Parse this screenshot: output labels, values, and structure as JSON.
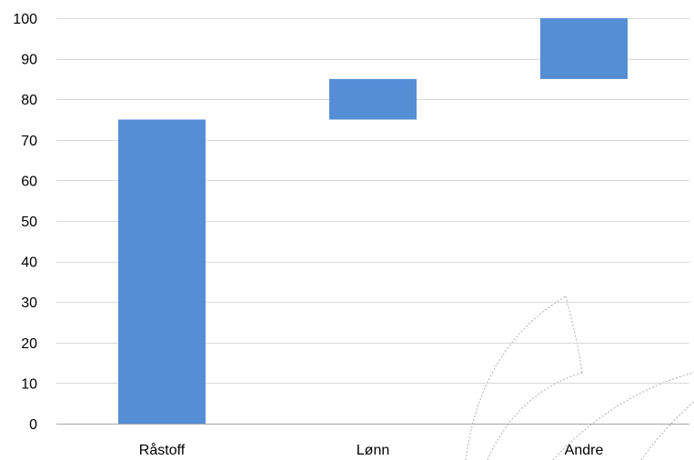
{
  "chart_data": {
    "type": "bar",
    "subtype": "waterfall",
    "title": "",
    "xlabel": "",
    "ylabel": "",
    "categories": [
      "Råstoff",
      "Lønn",
      "Andre"
    ],
    "values": [
      75,
      10,
      15
    ],
    "ranges": [
      [
        0,
        75
      ],
      [
        75,
        85
      ],
      [
        85,
        100
      ]
    ],
    "ylim": [
      0,
      100
    ],
    "yticks": [
      0,
      10,
      20,
      30,
      40,
      50,
      60,
      70,
      80,
      90,
      100
    ],
    "grid": true,
    "legend": "none",
    "colors": {
      "bar": "#558ed5",
      "grid": "#d9d9d9",
      "axis": "#a6a6a6",
      "watermark": "#b0b0b0"
    }
  }
}
